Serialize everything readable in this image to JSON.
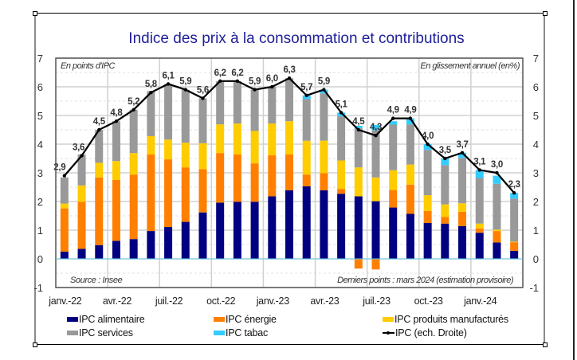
{
  "chart_data": {
    "type": "bar",
    "subtype": "stacked-bar-with-line",
    "title": "Indice des prix à la consommation et contributions",
    "left_axis_note": "En points d'IPC",
    "right_axis_note": "En glissement annuel (en%)",
    "source_note": "Source : Insee",
    "last_points_note": "Derniers points : mars 2024 (estimation provisoire)",
    "ylim": [
      -1,
      7
    ],
    "y_ticks": [
      "-1",
      "0",
      "1",
      "2",
      "3",
      "4",
      "5",
      "6",
      "7"
    ],
    "y2lim": [
      -1,
      7
    ],
    "y2_ticks": [
      "-1",
      "0",
      "1",
      "2",
      "3",
      "4",
      "5",
      "6",
      "7"
    ],
    "grid": true,
    "legend_position": "bottom",
    "categories": [
      "janv.-22",
      "févr.-22",
      "mars-22",
      "avr.-22",
      "mai-22",
      "juin-22",
      "juil.-22",
      "août-22",
      "sept.-22",
      "oct.-22",
      "nov.-22",
      "déc.-22",
      "janv.-23",
      "févr.-23",
      "mars-23",
      "avr.-23",
      "mai-23",
      "juin-23",
      "juil.-23",
      "août-23",
      "sept.-23",
      "oct.-23",
      "nov.-23",
      "déc.-23",
      "janv.-24",
      "févr.-24",
      "mars-24"
    ],
    "x_tick_labels": [
      {
        "index": 0,
        "label": "janv.-22"
      },
      {
        "index": 3,
        "label": "avr.-22"
      },
      {
        "index": 6,
        "label": "juil.-22"
      },
      {
        "index": 9,
        "label": "oct.-22"
      },
      {
        "index": 12,
        "label": "janv.-23"
      },
      {
        "index": 15,
        "label": "avr.-23"
      },
      {
        "index": 18,
        "label": "juil.-23"
      },
      {
        "index": 21,
        "label": "oct.-23"
      },
      {
        "index": 24,
        "label": "janv.-24"
      }
    ],
    "series": [
      {
        "name": "IPC alimentaire",
        "color": "#000080",
        "kind": "bar",
        "values": [
          0.25,
          0.35,
          0.48,
          0.63,
          0.69,
          0.97,
          1.11,
          1.29,
          1.62,
          1.96,
          1.99,
          1.99,
          2.18,
          2.39,
          2.53,
          2.39,
          2.27,
          2.18,
          2.01,
          1.79,
          1.57,
          1.25,
          1.23,
          1.14,
          0.91,
          0.57,
          0.28
        ]
      },
      {
        "name": "IPC énergie",
        "color": "#ff7f00",
        "kind": "bar",
        "values": [
          1.51,
          1.64,
          2.36,
          2.12,
          2.25,
          2.67,
          2.36,
          1.9,
          1.51,
          1.73,
          1.65,
          1.34,
          1.43,
          1.25,
          0.41,
          0.6,
          0.17,
          -0.34,
          -0.37,
          0.61,
          1.02,
          0.42,
          0.23,
          0.5,
          0.15,
          0.4,
          0.3
        ]
      },
      {
        "name": "IPC produits manufacturés",
        "color": "#ffcc00",
        "kind": "bar",
        "values": [
          0.17,
          0.57,
          0.51,
          0.66,
          0.75,
          0.64,
          0.69,
          0.86,
          0.9,
          1.0,
          1.08,
          1.13,
          1.11,
          1.16,
          1.18,
          1.13,
          0.99,
          1.01,
          0.83,
          0.69,
          0.7,
          0.55,
          0.44,
          0.3,
          0.17,
          0.05,
          0.02
        ]
      },
      {
        "name": "IPC services",
        "color": "#999999",
        "kind": "bar",
        "values": [
          0.91,
          1.08,
          1.15,
          1.39,
          1.51,
          1.57,
          1.94,
          1.85,
          1.57,
          1.51,
          1.48,
          1.44,
          1.28,
          1.5,
          1.45,
          1.65,
          1.54,
          1.36,
          1.65,
          1.59,
          1.4,
          1.58,
          1.37,
          1.58,
          1.59,
          1.6,
          1.5
        ]
      },
      {
        "name": "IPC tabac",
        "color": "#33ccff",
        "kind": "bar",
        "values": [
          0.0,
          0.0,
          0.0,
          0.0,
          0.0,
          0.0,
          0.0,
          0.0,
          0.0,
          0.0,
          0.0,
          0.0,
          0.0,
          0.0,
          0.13,
          0.13,
          0.13,
          0.09,
          0.18,
          0.12,
          0.21,
          0.2,
          0.23,
          0.18,
          0.28,
          0.28,
          0.2
        ]
      },
      {
        "name": "IPC (ech. Droite)",
        "color": "#000000",
        "kind": "line",
        "values": [
          2.9,
          3.6,
          4.5,
          4.8,
          5.2,
          5.8,
          6.1,
          5.9,
          5.6,
          6.2,
          6.2,
          5.9,
          6.0,
          6.3,
          5.7,
          5.9,
          5.1,
          4.5,
          4.3,
          4.9,
          4.9,
          4.0,
          3.5,
          3.7,
          3.1,
          3.0,
          2.3
        ],
        "labels": [
          "2,9",
          "3,6",
          "4,5",
          "4,8",
          "5,2",
          "5,8",
          "6,1",
          "5,9",
          "5,6",
          "6,2",
          "6,2",
          "5,9",
          "6,0",
          "6,3",
          "5,7",
          "5,9",
          "5,1",
          "4,5",
          "4,3",
          "4,9",
          "4,9",
          "4,0",
          "3,5",
          "3,7",
          "3,1",
          "3,0",
          "2,3"
        ]
      }
    ]
  },
  "colors": {
    "title": "#1f1f99",
    "axis_text": "#333333",
    "gridline": "#d0d0d0"
  }
}
